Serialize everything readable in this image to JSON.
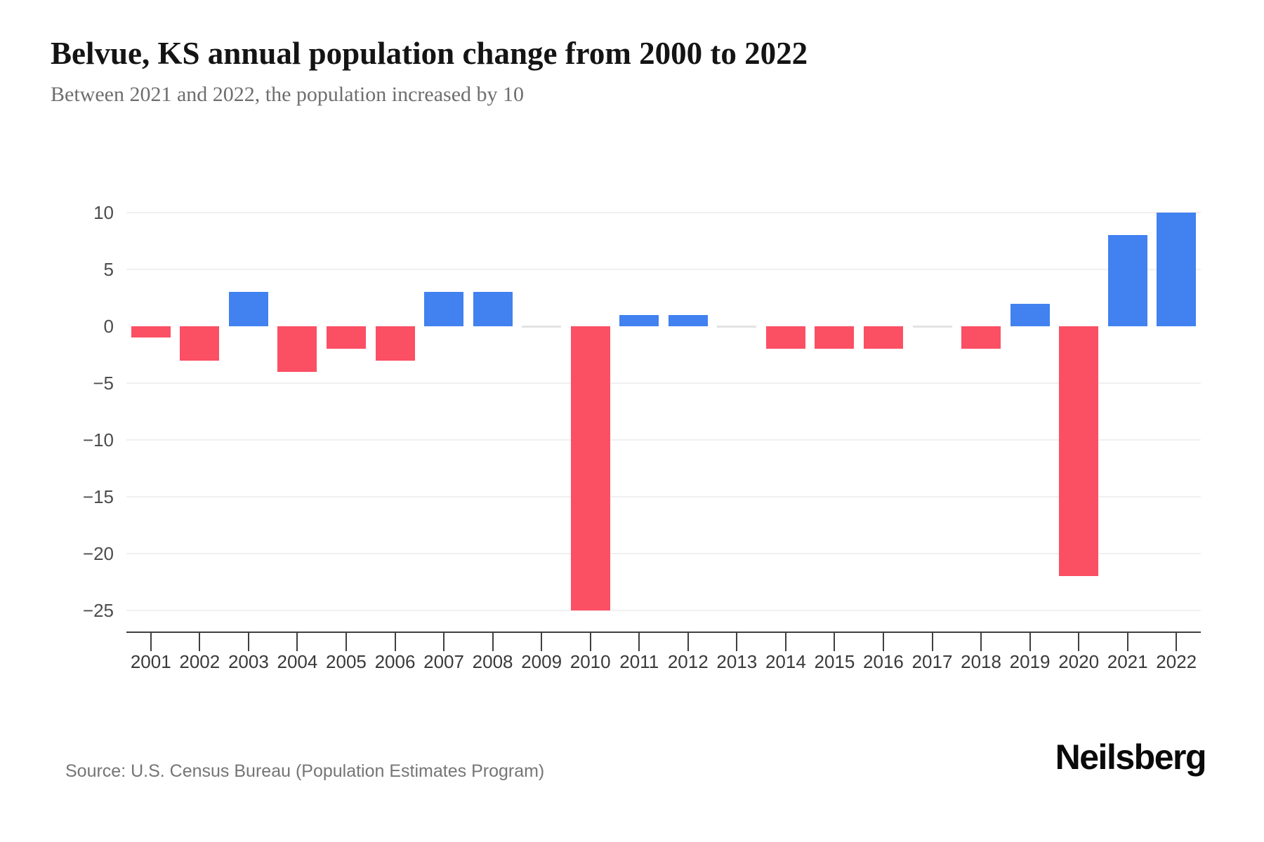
{
  "header": {
    "title": "Belvue, KS annual population change from 2000 to 2022",
    "subtitle": "Between 2021 and 2022, the population increased by 10"
  },
  "footer": {
    "source": "Source: U.S. Census Bureau (Population Estimates Program)",
    "brand": "Neilsberg"
  },
  "chart_data": {
    "type": "bar",
    "title": "Belvue, KS annual population change from 2000 to 2022",
    "subtitle": "Between 2021 and 2022, the population increased by 10",
    "xlabel": "",
    "ylabel": "",
    "categories": [
      "2001",
      "2002",
      "2003",
      "2004",
      "2005",
      "2006",
      "2007",
      "2008",
      "2009",
      "2010",
      "2011",
      "2012",
      "2013",
      "2014",
      "2015",
      "2016",
      "2017",
      "2018",
      "2019",
      "2020",
      "2021",
      "2022"
    ],
    "values": [
      -1,
      -3,
      3,
      -4,
      -2,
      -3,
      3,
      3,
      0,
      -25,
      1,
      1,
      0,
      -2,
      -2,
      -2,
      0,
      -2,
      2,
      -22,
      8,
      10
    ],
    "ylim": [
      -25,
      10
    ],
    "yticks": [
      10,
      5,
      0,
      -5,
      -10,
      -15,
      -20,
      -25
    ],
    "ytick_labels": [
      "10",
      "5",
      "0",
      "−5",
      "−10",
      "−15",
      "−20",
      "−25"
    ],
    "grid": true,
    "legend": "none",
    "colors": {
      "positive": "#4181f0",
      "negative": "#fb4f64",
      "zero_dash": "#e3e3e3",
      "grid": "#f0f0f0",
      "axis": "#3f3f3f"
    }
  }
}
